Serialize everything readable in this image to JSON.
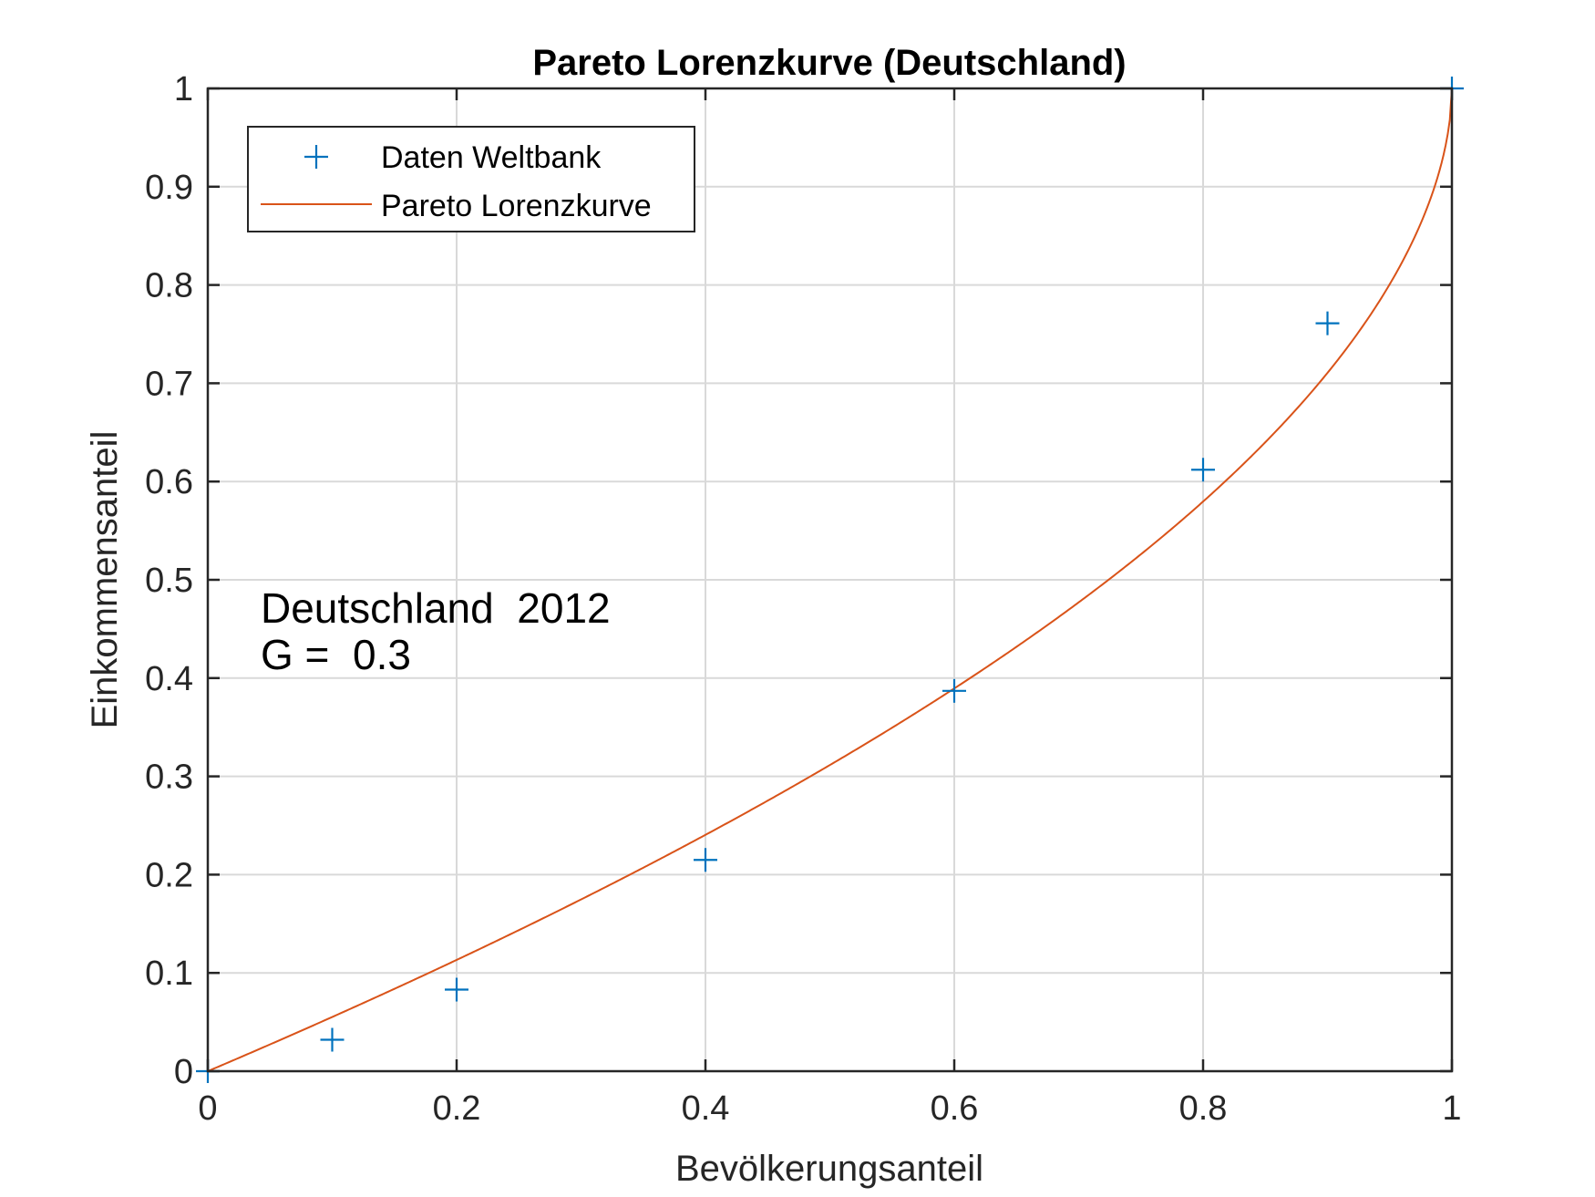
{
  "chart_data": {
    "type": "line",
    "title": "Pareto Lorenzkurve (Deutschland)",
    "xlabel": "Bevölkerungsanteil",
    "ylabel": "Einkommensanteil",
    "xlim": [
      0,
      1
    ],
    "ylim": [
      0,
      1
    ],
    "grid": true,
    "legend_position": "top-left",
    "x_ticks": [
      "0",
      "0.2",
      "0.4",
      "0.6",
      "0.8",
      "1"
    ],
    "y_ticks": [
      "0",
      "0.1",
      "0.2",
      "0.3",
      "0.4",
      "0.5",
      "0.6",
      "0.7",
      "0.8",
      "0.9",
      "1"
    ],
    "series": [
      {
        "name": "Daten Weltbank",
        "style": "markers",
        "marker": "plus",
        "color": "#0072BD",
        "x": [
          0,
          0.1,
          0.2,
          0.4,
          0.6,
          0.8,
          0.9,
          1.0
        ],
        "y": [
          0,
          0.032,
          0.083,
          0.215,
          0.387,
          0.612,
          0.761,
          1.0
        ]
      },
      {
        "name": "Pareto Lorenzkurve",
        "style": "line",
        "color": "#D95319",
        "formula": "L(p) = 1 - (1 - p)^(1 - 1/alpha), alpha = 2.1667"
      }
    ],
    "annotations": [
      "Deutschland  2012",
      "G =  0.3"
    ]
  }
}
